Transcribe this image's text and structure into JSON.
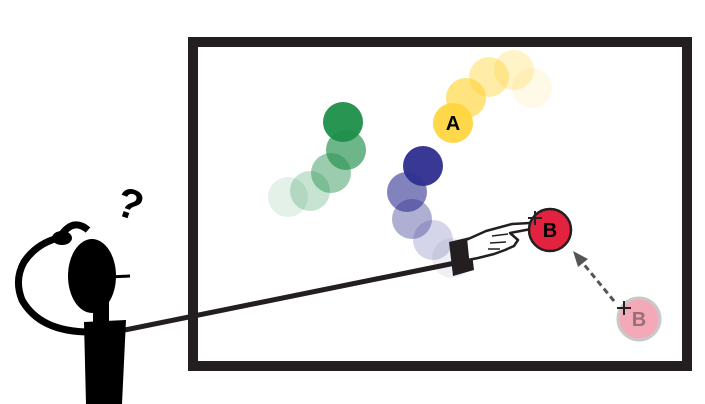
{
  "labels": {
    "target_a": "A",
    "target_b": "B",
    "target_b_ghost": "B",
    "question_mark": "?"
  },
  "colors": {
    "frame": "#231f20",
    "pointer": "#231f20",
    "green_trail": "#1e8f4a",
    "blue_trail": "#2e2e8f",
    "yellow_trail": "#ffd43b",
    "target_b_fill": "#e3223f",
    "target_b_ghost_fill": "#f4a9b8",
    "arrow": "#555555",
    "figure": "#000000"
  },
  "icons": {
    "pointing_hand": "pointing-hand-icon",
    "question": "question-mark-icon",
    "crosshair": "crosshair-icon",
    "person": "confused-person-icon"
  }
}
